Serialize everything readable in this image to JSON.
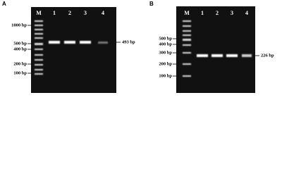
{
  "panels": [
    {
      "label": "A",
      "lanes": [
        "M",
        "1",
        "2",
        "3",
        "4"
      ],
      "ladder": [
        "1000 bp",
        "500 bp",
        "400 bp",
        "200 bp",
        "100 bp"
      ],
      "product": "493 bp"
    },
    {
      "label": "B",
      "lanes": [
        "M",
        "1",
        "2",
        "3",
        "4"
      ],
      "ladder": [
        "500 bp",
        "400 bp",
        "300 bp",
        "200 bp",
        "100 bp"
      ],
      "product": "226 bp"
    }
  ]
}
